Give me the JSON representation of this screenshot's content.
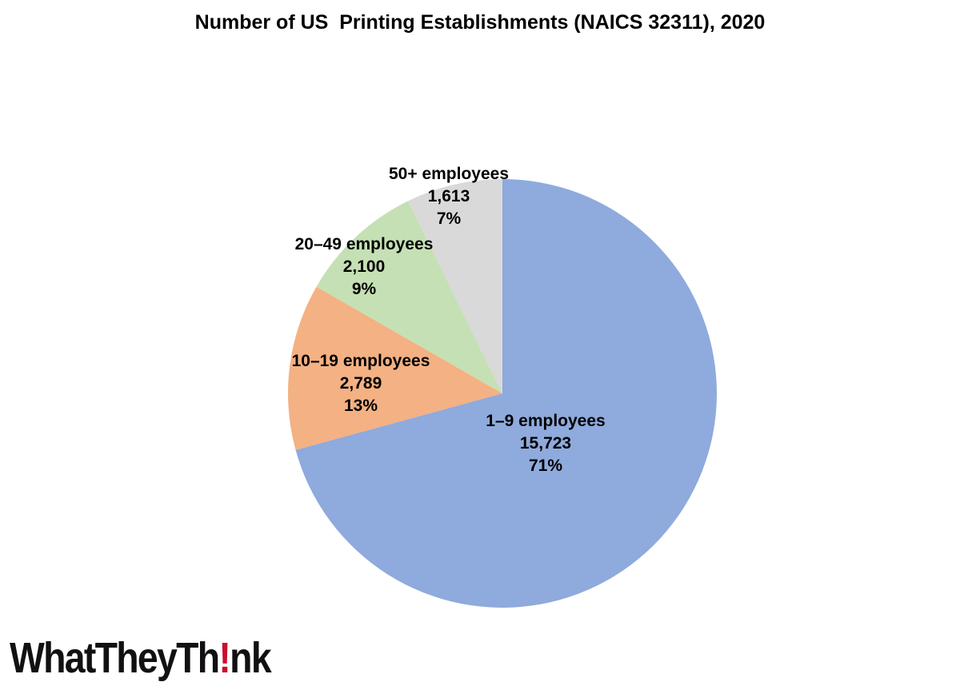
{
  "chart_data": {
    "type": "pie",
    "title": "Number of US  Printing Establishments (NAICS 32311), 2020",
    "slices": [
      {
        "label": "1–9 employees",
        "value": 15723,
        "value_text": "15,723",
        "percent_text": "71%",
        "color": "#8faadc"
      },
      {
        "label": "10–19 employees",
        "value": 2789,
        "value_text": "2,789",
        "percent_text": "13%",
        "color": "#f4b183"
      },
      {
        "label": "20–49 employees",
        "value": 2100,
        "value_text": "2,100",
        "percent_text": "9%",
        "color": "#c5e0b4"
      },
      {
        "label": "50+ employees",
        "value": 1613,
        "value_text": "1,613",
        "percent_text": "7%",
        "color": "#d9d9d9"
      }
    ],
    "start": "12 o'clock",
    "direction": "clockwise"
  },
  "logo": {
    "text_before": "WhatTheyTh",
    "text_mark": "!",
    "text_after": "nk",
    "mark_color": "#c8102e"
  }
}
